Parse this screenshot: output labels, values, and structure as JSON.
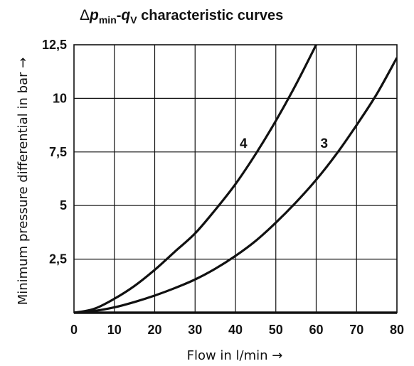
{
  "chart_data": {
    "type": "line",
    "title": {
      "delta": "Δ",
      "p": "p",
      "p_sub": "min",
      "dash": "-",
      "q": "q",
      "q_sub": "V",
      "rest": " characteristic curves"
    },
    "xlabel": "Flow in l/min →",
    "ylabel": "Minimum pressure differential in bar →",
    "xlim": [
      0,
      80
    ],
    "ylim": [
      0,
      12.5
    ],
    "x_ticks": [
      0,
      10,
      20,
      30,
      40,
      50,
      60,
      70,
      80
    ],
    "x_tick_labels": [
      "0",
      "10",
      "20",
      "30",
      "40",
      "50",
      "60",
      "70",
      "80"
    ],
    "y_ticks": [
      2.5,
      5,
      7.5,
      10,
      12.5
    ],
    "y_tick_labels": [
      "2,5",
      "5",
      "7,5",
      "10",
      "12,5"
    ],
    "grid": true,
    "series": [
      {
        "name": "4",
        "x": [
          0,
          5,
          10,
          15,
          20,
          25,
          30,
          35,
          40,
          45,
          50,
          55,
          60
        ],
        "y": [
          0,
          0.18,
          0.65,
          1.25,
          2.0,
          2.85,
          3.7,
          4.8,
          6.0,
          7.4,
          8.95,
          10.65,
          12.5
        ]
      },
      {
        "name": "3",
        "x": [
          0,
          5,
          10,
          15,
          20,
          25,
          30,
          35,
          40,
          45,
          50,
          55,
          60,
          65,
          70,
          75,
          80
        ],
        "y": [
          0,
          0.08,
          0.25,
          0.5,
          0.8,
          1.15,
          1.55,
          2.05,
          2.65,
          3.35,
          4.2,
          5.15,
          6.2,
          7.4,
          8.75,
          10.2,
          11.9
        ]
      }
    ]
  }
}
